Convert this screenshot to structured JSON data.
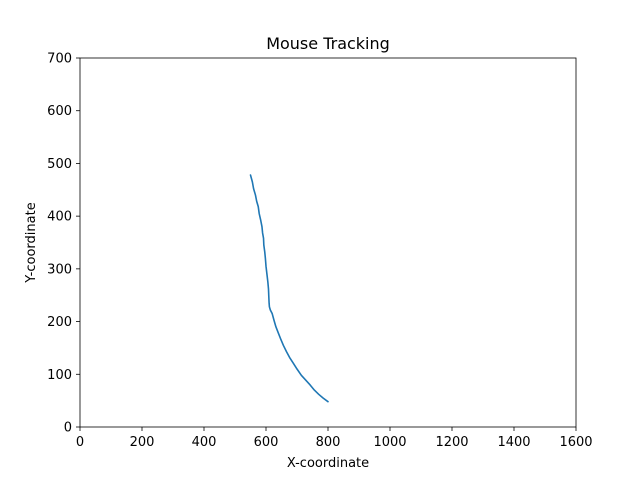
{
  "chart_data": {
    "type": "line",
    "title": "Mouse Tracking",
    "xlabel": "X-coordinate",
    "ylabel": "Y-coordinate",
    "xlim": [
      0,
      1600
    ],
    "ylim": [
      0,
      700
    ],
    "xticks": [
      0,
      200,
      400,
      600,
      800,
      1000,
      1200,
      1400,
      1600
    ],
    "yticks": [
      0,
      100,
      200,
      300,
      400,
      500,
      600,
      700
    ],
    "grid": false,
    "legend": "none",
    "series": [
      {
        "color": "#1f77b4",
        "x": [
          550,
          556,
          560,
          566,
          570,
          575,
          578,
          583,
          587,
          589,
          592,
          593,
          596,
          598,
          600,
          603,
          606,
          608,
          609,
          610,
          611,
          614,
          620,
          626,
          632,
          640,
          648,
          656,
          666,
          676,
          688,
          700,
          714,
          728,
          742,
          756,
          770,
          784,
          800
        ],
        "y": [
          478,
          465,
          452,
          440,
          428,
          418,
          405,
          392,
          380,
          368,
          358,
          345,
          332,
          320,
          305,
          290,
          275,
          262,
          248,
          235,
          228,
          222,
          215,
          202,
          190,
          178,
          166,
          155,
          143,
          132,
          121,
          110,
          98,
          89,
          80,
          70,
          62,
          55,
          48
        ]
      }
    ]
  }
}
